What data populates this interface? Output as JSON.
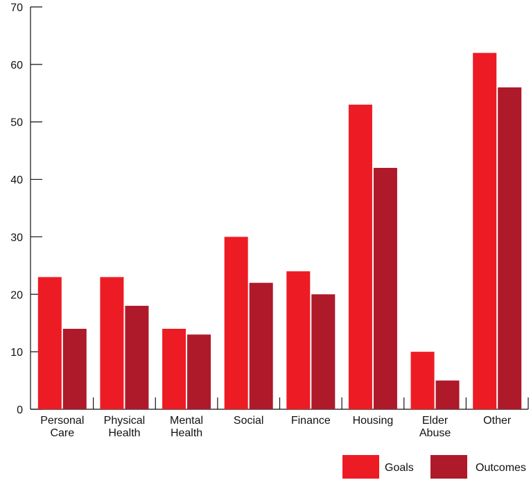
{
  "chart_data": {
    "type": "bar",
    "categories": [
      [
        "Personal",
        "Care"
      ],
      [
        "Physical",
        "Health"
      ],
      [
        "Mental",
        "Health"
      ],
      [
        "Social"
      ],
      [
        "Finance"
      ],
      [
        "Housing"
      ],
      [
        "Elder",
        "Abuse"
      ],
      [
        "Other"
      ]
    ],
    "series": [
      {
        "name": "Goals",
        "color": "#ed1c24",
        "values": [
          23,
          23,
          14,
          30,
          24,
          53,
          10,
          62
        ]
      },
      {
        "name": "Outcomes",
        "color": "#ae1a2a",
        "values": [
          14,
          18,
          13,
          22,
          20,
          42,
          5,
          56
        ]
      }
    ],
    "ylim": [
      0,
      70
    ],
    "yticks": [
      0,
      10,
      20,
      30,
      40,
      50,
      60,
      70
    ],
    "grid": false,
    "legend_position": "bottom-right"
  }
}
